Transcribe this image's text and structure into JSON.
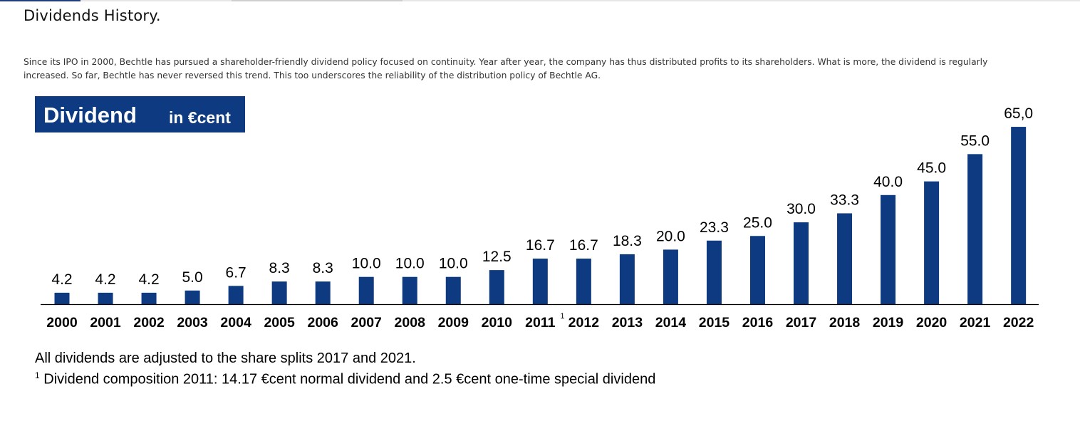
{
  "page": {
    "title": "Dividends History.",
    "description": "Since its IPO in 2000, Bechtle has pursued a shareholder-friendly dividend policy focused on continuity. Year after year, the company has thus distributed profits to its shareholders. What is more, the dividend is regularly increased. So far, Bechtle has never reversed this trend. This too underscores the reliability of the distribution policy of Bechtle AG."
  },
  "chart_data": {
    "type": "bar",
    "title": "Dividend",
    "subtitle": "in €cent",
    "categories": [
      "2000",
      "2001",
      "2002",
      "2003",
      "2004",
      "2005",
      "2006",
      "2007",
      "2008",
      "2009",
      "2010",
      "2011",
      "2012",
      "2013",
      "2014",
      "2015",
      "2016",
      "2017",
      "2018",
      "2019",
      "2020",
      "2021",
      "2022"
    ],
    "category_superscripts": {
      "2011": "1"
    },
    "values": [
      4.2,
      4.2,
      4.2,
      5.0,
      6.7,
      8.3,
      8.3,
      10.0,
      10.0,
      10.0,
      12.5,
      16.7,
      16.7,
      18.3,
      20.0,
      23.3,
      25.0,
      30.0,
      33.3,
      40.0,
      45.0,
      55.0,
      65.0
    ],
    "value_labels": [
      "4.2",
      "4.2",
      "4.2",
      "5.0",
      "6.7",
      "8.3",
      "8.3",
      "10.0",
      "10.0",
      "10.0",
      "12.5",
      "16.7",
      "16.7",
      "18.3",
      "20.0",
      "23.3",
      "25.0",
      "30.0",
      "33.3",
      "40.0",
      "45.0",
      "55.0",
      "65,0"
    ],
    "bar_color": "#0d3a80",
    "grid": false,
    "legend": "none"
  },
  "footnotes": {
    "line1": "All dividends are adjusted to the share splits 2017 and 2021.",
    "line2_marker": "1",
    "line2": "Dividend composition 2011: 14.17 €cent normal dividend and 2.5 €cent one-time special dividend"
  }
}
